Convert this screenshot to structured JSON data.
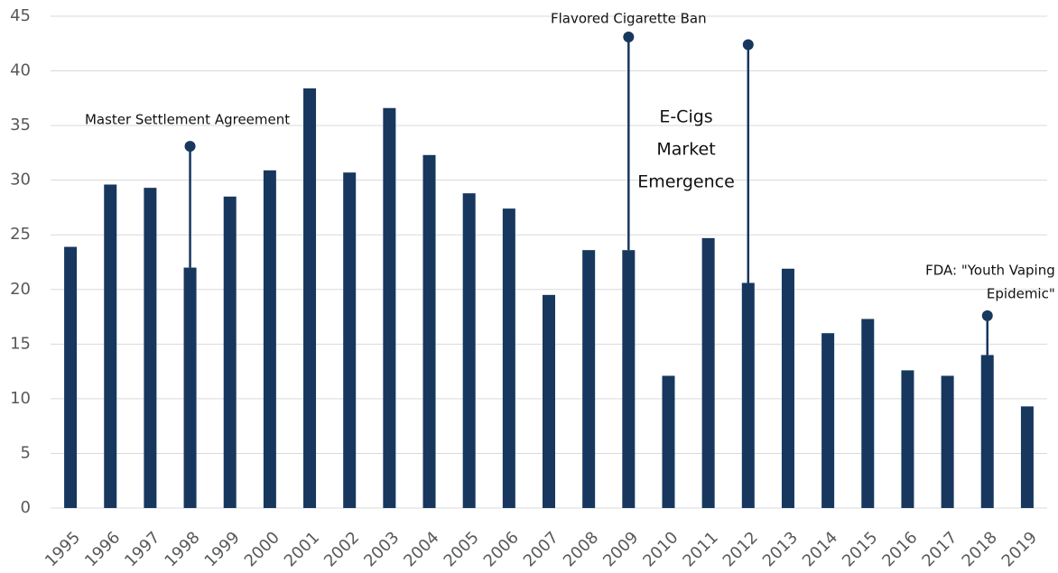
{
  "chart_data": {
    "type": "bar",
    "categories": [
      "1995",
      "1996",
      "1997",
      "1998",
      "1999",
      "2000",
      "2001",
      "2002",
      "2003",
      "2004",
      "2005",
      "2006",
      "2007",
      "2008",
      "2009",
      "2010",
      "2011",
      "2012",
      "2013",
      "2014",
      "2015",
      "2016",
      "2017",
      "2018",
      "2019"
    ],
    "values": [
      23.9,
      29.6,
      29.3,
      22.0,
      28.5,
      30.9,
      38.4,
      30.7,
      36.6,
      32.3,
      28.8,
      27.4,
      19.5,
      23.6,
      23.6,
      12.1,
      24.7,
      20.6,
      21.9,
      16.0,
      17.3,
      12.6,
      12.1,
      14.0,
      9.3
    ],
    "color": "#17375e",
    "ylim": [
      0,
      45
    ],
    "yticks": [
      0,
      5,
      10,
      15,
      20,
      25,
      30,
      35,
      40,
      45
    ],
    "grid": true,
    "annotations": [
      {
        "category": "1998",
        "marker": 33.1,
        "lines": [
          "Master Settlement Agreement"
        ]
      },
      {
        "category": "2009",
        "marker": 43.1,
        "lines": [
          "Flavored Cigarette Ban"
        ]
      },
      {
        "category": "2012",
        "marker": 42.4,
        "lines": []
      },
      {
        "category": "2018",
        "marker": 17.6,
        "lines": [
          "FDA: \"Youth Vaping",
          "Epidemic\""
        ]
      },
      {
        "category": null,
        "marker": null,
        "lines": [
          "E-Cigs",
          "Market",
          "Emergence"
        ]
      }
    ]
  }
}
